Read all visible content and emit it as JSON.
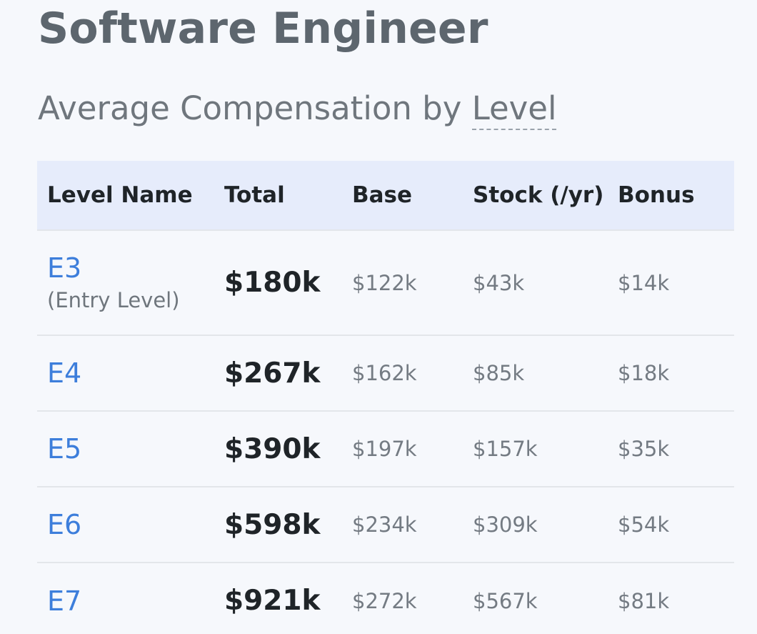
{
  "header": {
    "title": "Software Engineer",
    "subtitle_prefix": "Average Compensation by ",
    "subtitle_term": "Level"
  },
  "table": {
    "columns": [
      "Level Name",
      "Total",
      "Base",
      "Stock (/yr)",
      "Bonus"
    ],
    "rows": [
      {
        "level": "E3",
        "note": "(Entry Level)",
        "total": "$180k",
        "base": "$122k",
        "stock": "$43k",
        "bonus": "$14k"
      },
      {
        "level": "E4",
        "note": "",
        "total": "$267k",
        "base": "$162k",
        "stock": "$85k",
        "bonus": "$18k"
      },
      {
        "level": "E5",
        "note": "",
        "total": "$390k",
        "base": "$197k",
        "stock": "$157k",
        "bonus": "$35k"
      },
      {
        "level": "E6",
        "note": "",
        "total": "$598k",
        "base": "$234k",
        "stock": "$309k",
        "bonus": "$54k"
      },
      {
        "level": "E7",
        "note": "",
        "total": "$921k",
        "base": "$272k",
        "stock": "$567k",
        "bonus": "$81k"
      }
    ]
  },
  "colors": {
    "link": "#3d7edb",
    "header_bg": "#e6ecfb",
    "page_bg": "#f6f8fc"
  }
}
